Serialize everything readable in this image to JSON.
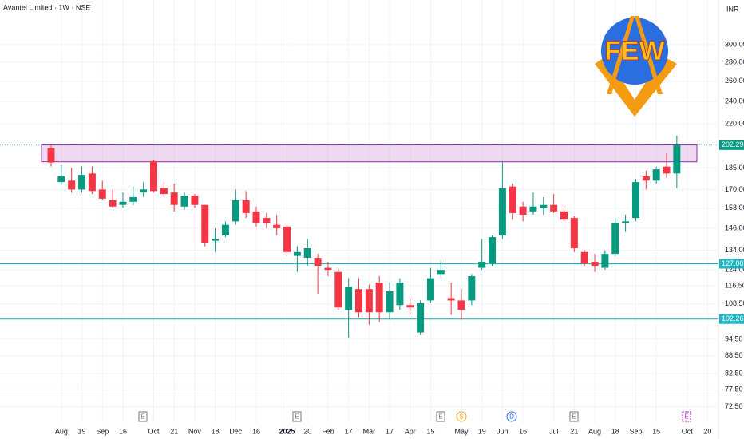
{
  "chart_data": {
    "type": "candlestick",
    "title": "Avantel Limited · 1W · NSE",
    "currency": "INR",
    "logo_text": "FEW",
    "log_scale": true,
    "grid": true,
    "up_color": "#089981",
    "down_color": "#f23645",
    "ylim": [
      68,
      357.5
    ],
    "yticks": [
      {
        "value": 300,
        "label": "300.00"
      },
      {
        "value": 280,
        "label": "280.00"
      },
      {
        "value": 260,
        "label": "260.00"
      },
      {
        "value": 240,
        "label": "240.00"
      },
      {
        "value": 220,
        "label": "220.00"
      },
      {
        "value": 185,
        "label": "185.00"
      },
      {
        "value": 170,
        "label": "170.00"
      },
      {
        "value": 158,
        "label": "158.00"
      },
      {
        "value": 146,
        "label": "146.00"
      },
      {
        "value": 134,
        "label": "134.00"
      },
      {
        "value": 124,
        "label": "124.00"
      },
      {
        "value": 116.5,
        "label": "116.50"
      },
      {
        "value": 108.5,
        "label": "108.50"
      },
      {
        "value": 94.5,
        "label": "94.50"
      },
      {
        "value": 88.5,
        "label": "88.50"
      },
      {
        "value": 82.5,
        "label": "82.50"
      },
      {
        "value": 77.5,
        "label": "77.50"
      },
      {
        "value": 72.5,
        "label": "72.50"
      }
    ],
    "categories": [
      null,
      "Aug",
      null,
      "19",
      null,
      "Sep",
      null,
      "16",
      null,
      null,
      "Oct",
      null,
      "21",
      null,
      "Nov",
      null,
      "18",
      null,
      "Dec",
      null,
      "16",
      null,
      null,
      "2025",
      null,
      "20",
      null,
      "Feb",
      null,
      "17",
      null,
      "Mar",
      null,
      "17",
      null,
      "Apr",
      null,
      "15",
      null,
      null,
      "May",
      null,
      "19",
      null,
      "Jun",
      null,
      "16",
      null,
      null,
      "Jul",
      null,
      "21",
      null,
      "Aug",
      null,
      "18",
      null,
      "Sep",
      null,
      "15",
      null,
      null,
      "Oct",
      null,
      "20"
    ],
    "open": [
      200,
      175,
      176,
      170,
      181,
      170,
      163,
      160,
      162,
      168,
      190,
      171,
      168,
      159,
      166,
      160,
      139,
      142,
      150,
      163,
      156,
      152,
      148,
      147,
      131,
      130,
      130,
      125,
      123,
      106,
      115,
      115,
      118,
      105,
      108,
      108,
      97,
      110,
      122,
      111,
      110,
      110,
      125,
      127,
      142,
      172,
      159,
      156,
      158,
      160,
      156,
      152,
      133,
      128,
      125,
      132,
      149,
      152,
      179,
      176,
      186,
      181,
      null,
      null,
      null
    ],
    "high": [
      203,
      187,
      185,
      186,
      186,
      176,
      170,
      168,
      172,
      175,
      191,
      175,
      174,
      168,
      167,
      160,
      146,
      150,
      170,
      169,
      159,
      155,
      154,
      148,
      136,
      140,
      132,
      128,
      125,
      120,
      120,
      117,
      121,
      118,
      120,
      111,
      110,
      125,
      129,
      118,
      115,
      122,
      140,
      142,
      190,
      174,
      162,
      168,
      165,
      167,
      160,
      153,
      134,
      132,
      134,
      152,
      154,
      177,
      183,
      186,
      196,
      210,
      null,
      null,
      null
    ],
    "low": [
      186,
      173,
      168,
      168,
      167,
      163,
      158,
      158,
      160,
      165,
      168,
      165,
      156,
      157,
      158,
      136,
      133,
      141,
      148,
      152,
      147,
      146,
      142,
      131,
      123,
      126,
      113,
      121,
      106,
      95,
      103,
      100,
      101,
      102,
      106,
      104,
      96,
      109,
      120,
      104,
      102,
      108,
      124,
      126,
      140,
      151,
      150,
      154,
      154,
      155,
      150,
      133,
      126,
      123,
      124,
      131,
      144,
      150,
      170,
      174,
      178,
      171,
      null,
      null,
      null
    ],
    "close": [
      189,
      179,
      170,
      180,
      169,
      164,
      159,
      162,
      165,
      170,
      169,
      167,
      160,
      166,
      160,
      138,
      140,
      148,
      163,
      155,
      149,
      149,
      146,
      133,
      133,
      135,
      126,
      124,
      107,
      116,
      105,
      105,
      105,
      114,
      118,
      107,
      109,
      120,
      124,
      110,
      106,
      121,
      128,
      141,
      171,
      155,
      154,
      159,
      160,
      156,
      151,
      135,
      127,
      126,
      132,
      149,
      150,
      175,
      176,
      184,
      181,
      202.29,
      null,
      null,
      null
    ],
    "last_price": {
      "value": 202.29,
      "label": "202.29"
    },
    "price_lines": [
      {
        "value": 127,
        "label": "127.00"
      },
      {
        "value": 102.26,
        "label": "102.26"
      }
    ],
    "line_color": "#22b5bf",
    "zone": [
      189.5,
      202.5
    ],
    "events": [
      "E",
      "E",
      "E",
      "$",
      "D",
      "E",
      "E"
    ]
  }
}
